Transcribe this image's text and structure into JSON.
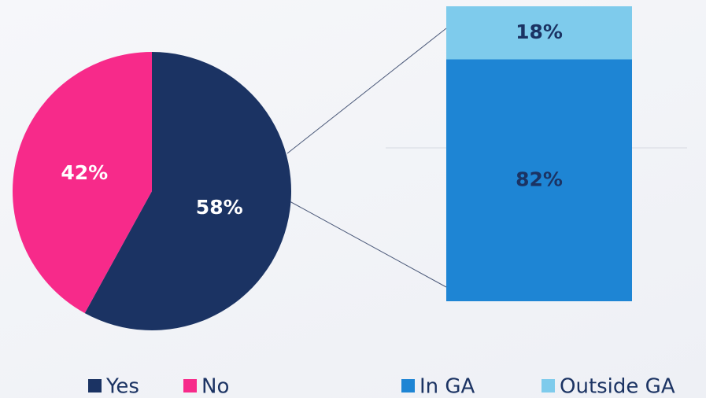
{
  "chart_data": [
    {
      "type": "pie",
      "categories": [
        "Yes",
        "No"
      ],
      "values": [
        58,
        42
      ],
      "value_labels": [
        "58%",
        "42%"
      ],
      "colors": [
        "#1b3363",
        "#f72a8a"
      ],
      "legend": "bottom"
    },
    {
      "type": "stacked-bar",
      "categories": [
        null
      ],
      "series": [
        {
          "name": "In GA",
          "color": "#1e85d4",
          "values": [
            82
          ],
          "value_labels": [
            "82%"
          ]
        },
        {
          "name": "Outside GA",
          "color": "#7ecbec",
          "values": [
            18
          ],
          "value_labels": [
            "18%"
          ]
        }
      ],
      "legend": "bottom"
    }
  ]
}
